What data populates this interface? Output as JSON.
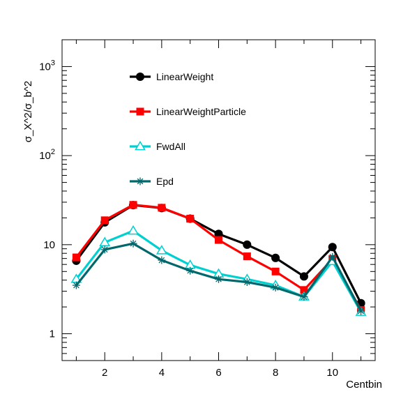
{
  "chart_data": {
    "type": "line",
    "title": "",
    "xlabel": "Centbin",
    "ylabel": "σ_X^2/σ_b^2",
    "xlim": [
      0.5,
      11.5
    ],
    "ylim": [
      0.5,
      2000
    ],
    "yscale": "log",
    "grid": false,
    "legend_position": "top-left",
    "x_ticks": [
      {
        "value": 2,
        "label": "2"
      },
      {
        "value": 4,
        "label": "4"
      },
      {
        "value": 6,
        "label": "6"
      },
      {
        "value": 8,
        "label": "8"
      },
      {
        "value": 10,
        "label": "10"
      }
    ],
    "y_ticks": [
      {
        "value": 1,
        "base": "1",
        "exp": ""
      },
      {
        "value": 10,
        "base": "10",
        "exp": ""
      },
      {
        "value": 100,
        "base": "10",
        "exp": "2"
      },
      {
        "value": 1000,
        "base": "10",
        "exp": "3"
      }
    ],
    "x": [
      1,
      2,
      3,
      4,
      5,
      6,
      7,
      8,
      9,
      10,
      11
    ],
    "series": [
      {
        "name": "LinearWeight",
        "color": "#000000",
        "marker": "circle",
        "values": [
          6.6,
          17.8,
          27.8,
          25.8,
          19.6,
          13.2,
          10.0,
          7.1,
          4.4,
          9.4,
          2.2
        ]
      },
      {
        "name": "LinearWeightParticle",
        "color": "#ff0000",
        "marker": "square",
        "values": [
          7.2,
          18.8,
          28.0,
          26.0,
          19.6,
          11.3,
          7.4,
          5.0,
          3.1,
          6.9,
          1.85
        ]
      },
      {
        "name": "FwdAll",
        "color": "#00d0d0",
        "marker": "triangle-open",
        "values": [
          4.1,
          10.6,
          14.3,
          8.6,
          5.9,
          4.7,
          4.1,
          3.5,
          2.6,
          6.5,
          1.75
        ]
      },
      {
        "name": "Epd",
        "color": "#00686b",
        "marker": "star",
        "values": [
          3.5,
          8.8,
          10.3,
          6.7,
          5.1,
          4.1,
          3.8,
          3.3,
          2.6,
          7.3,
          1.8
        ]
      }
    ]
  }
}
